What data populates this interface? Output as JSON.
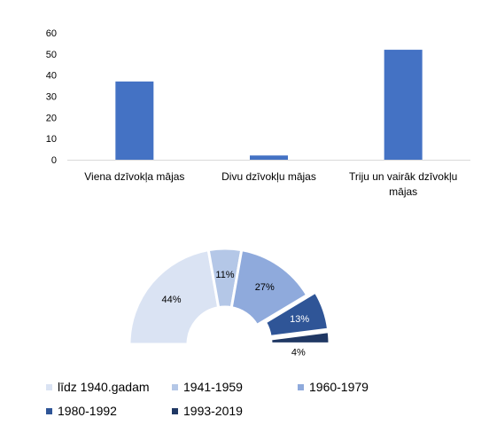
{
  "chart_data": [
    {
      "type": "bar",
      "categories": [
        "Viena dzīvokļa mājas",
        "Divu dzīvokļu mājas",
        "Triju un vairāk dzīvokļu mājas"
      ],
      "category_lines": [
        [
          "Viena dzīvokļa mājas"
        ],
        [
          "Divu dzīvokļu mājas"
        ],
        [
          "Triju un vairāk dzīvokļu",
          "mājas"
        ]
      ],
      "values": [
        37,
        2,
        52
      ],
      "y_ticks": [
        "0",
        "10",
        "20",
        "30",
        "40",
        "50",
        "60"
      ],
      "ylim": [
        0,
        60
      ],
      "color": "#4472C4",
      "grid": false,
      "title": "",
      "xlabel": "",
      "ylabel": ""
    },
    {
      "type": "pie",
      "variant": "semi-donut",
      "labels": [
        "līdz 1940.gadam",
        "1941-1959",
        "1960-1979",
        "1980-1992",
        "1993-2019"
      ],
      "values": [
        44,
        11,
        27,
        13,
        4
      ],
      "data_labels": [
        "44%",
        "11%",
        "27%",
        "13%",
        "4%"
      ],
      "colors": [
        "#DAE3F3",
        "#B4C7E7",
        "#8FAADC",
        "#2F5597",
        "#203864"
      ],
      "label_colors": [
        "#000000",
        "#000000",
        "#000000",
        "#ffffff",
        "#000000"
      ],
      "legend_position": "bottom"
    }
  ]
}
